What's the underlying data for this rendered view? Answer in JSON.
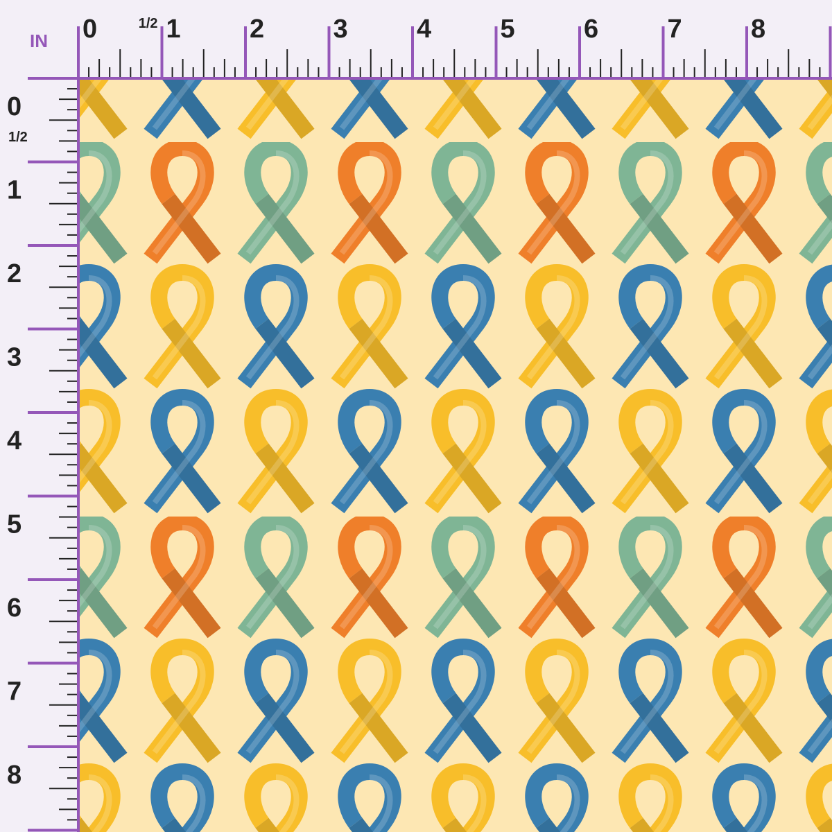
{
  "ruler": {
    "unit": "IN",
    "top_labels": [
      "0",
      "1/2",
      "1",
      "2",
      "3",
      "4",
      "5",
      "6",
      "7",
      "8"
    ],
    "left_labels": [
      "0",
      "1/2",
      "1",
      "2",
      "3",
      "4",
      "5",
      "6",
      "7",
      "8"
    ]
  }
}
